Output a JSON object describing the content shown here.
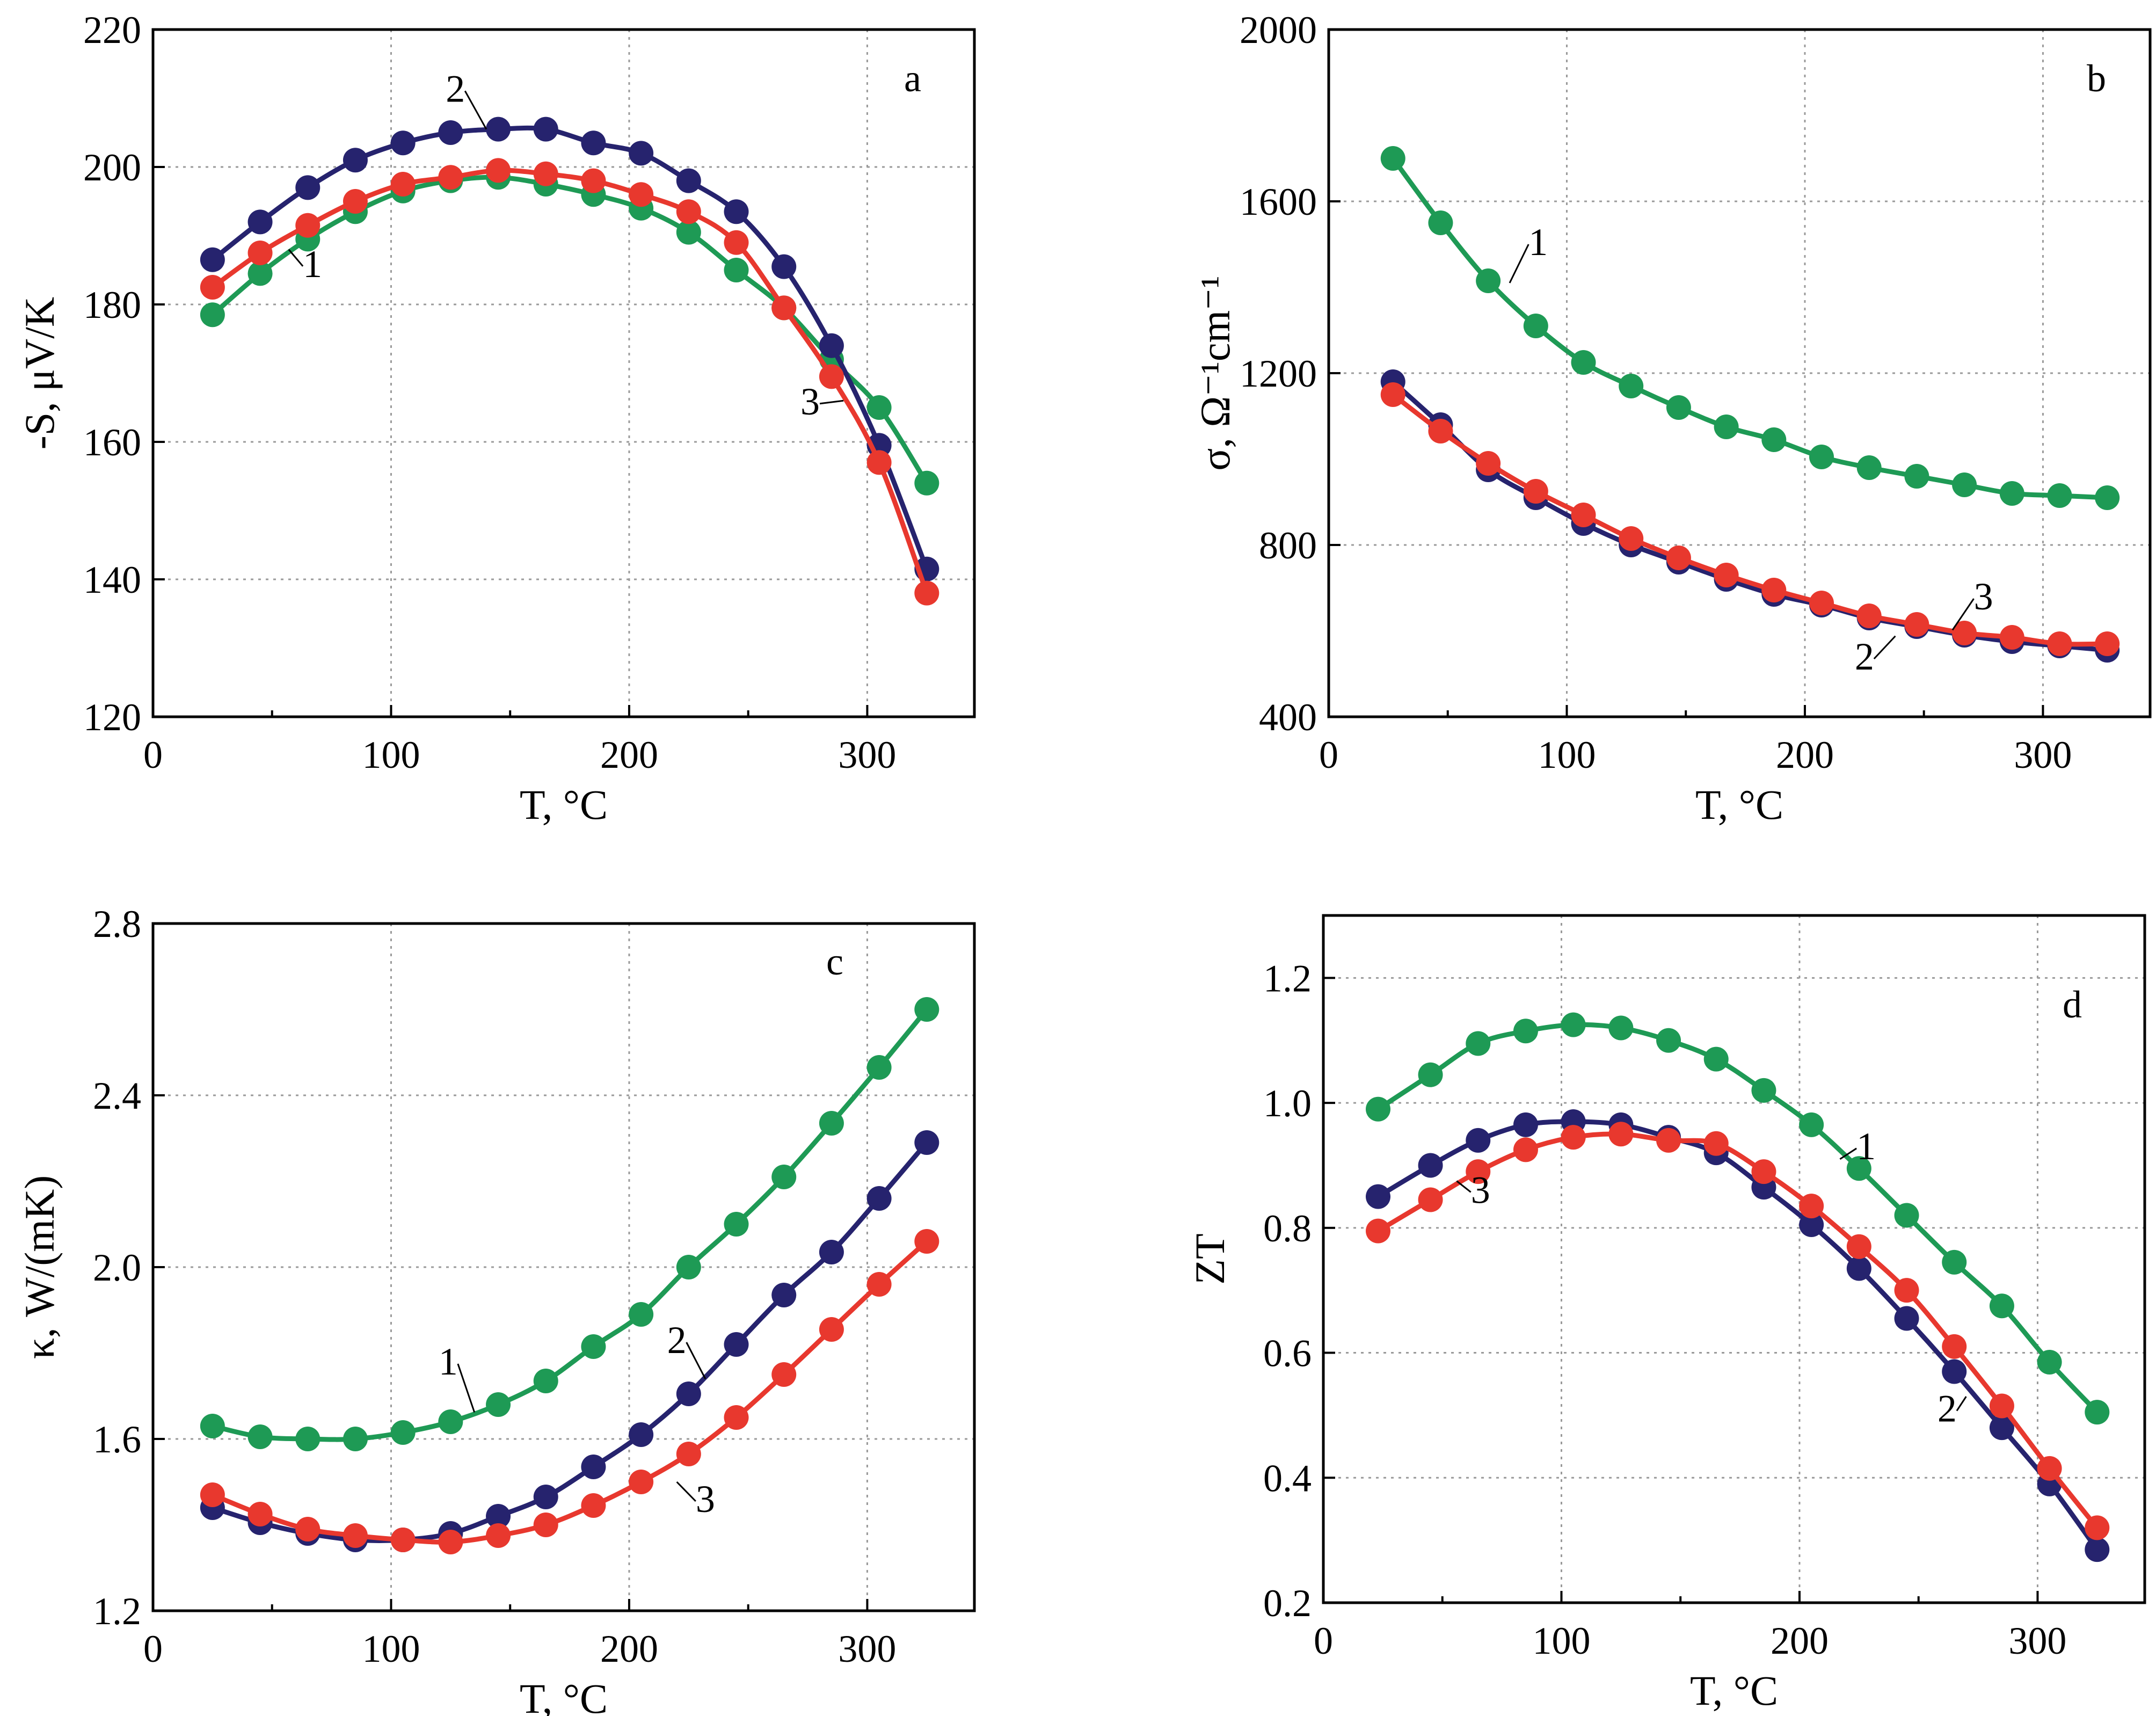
{
  "colors": {
    "green": "#1e9a55",
    "navy": "#26236e",
    "red": "#e8382e"
  },
  "chart_data": [
    {
      "type": "line",
      "panel": "a",
      "xlabel": "T, °C",
      "ylabel": "-S, μV/K",
      "xlim": [
        0,
        345
      ],
      "ylim": [
        120,
        220
      ],
      "xticks": [
        0,
        100,
        200,
        300
      ],
      "yticks": [
        120,
        140,
        160,
        180,
        200,
        220
      ],
      "x": [
        25,
        45,
        65,
        85,
        105,
        125,
        145,
        165,
        185,
        205,
        225,
        245,
        265,
        285,
        305,
        325
      ],
      "series": [
        {
          "name": "1",
          "color": "#1e9a55",
          "values": [
            178.5,
            184.5,
            189.5,
            193.5,
            196.5,
            198,
            198.5,
            197.5,
            196,
            194,
            190.5,
            185,
            179.5,
            172,
            165,
            154
          ]
        },
        {
          "name": "2",
          "color": "#26236e",
          "values": [
            186.5,
            192,
            197,
            201,
            203.5,
            205,
            205.5,
            205.5,
            203.5,
            202,
            198,
            193.5,
            185.5,
            174,
            159.5,
            141.5
          ]
        },
        {
          "name": "3",
          "color": "#e8382e",
          "values": [
            182.5,
            187.5,
            191.5,
            195,
            197.5,
            198.5,
            199.5,
            199,
            198,
            196,
            193.5,
            189,
            179.5,
            169.5,
            157,
            138
          ]
        }
      ],
      "curve_labels": [
        {
          "text": "1",
          "x": 67,
          "y": 184,
          "ax": 57,
          "ay": 188
        },
        {
          "text": "2",
          "x": 127,
          "y": 209.5,
          "ax": 140,
          "ay": 205.5
        },
        {
          "text": "3",
          "x": 276,
          "y": 164,
          "ax": 290,
          "ay": 166
        }
      ]
    },
    {
      "type": "line",
      "panel": "b",
      "xlabel": "T, °C",
      "ylabel": "σ, Ω⁻¹cm⁻¹",
      "xlim": [
        0,
        345
      ],
      "ylim": [
        400,
        2000
      ],
      "xticks": [
        0,
        100,
        200,
        300
      ],
      "yticks": [
        400,
        800,
        1200,
        1600,
        2000
      ],
      "x": [
        27,
        47,
        67,
        87,
        107,
        127,
        147,
        167,
        187,
        207,
        227,
        247,
        267,
        287,
        307,
        327
      ],
      "series": [
        {
          "name": "1",
          "color": "#1e9a55",
          "values": [
            1700,
            1550,
            1415,
            1310,
            1225,
            1170,
            1120,
            1075,
            1045,
            1005,
            980,
            960,
            940,
            920,
            915,
            910
          ]
        },
        {
          "name": "2",
          "color": "#26236e",
          "values": [
            1180,
            1080,
            975,
            910,
            850,
            800,
            760,
            720,
            685,
            660,
            630,
            610,
            590,
            575,
            565,
            555
          ]
        },
        {
          "name": "3",
          "color": "#e8382e",
          "values": [
            1150,
            1065,
            990,
            925,
            870,
            815,
            770,
            730,
            695,
            665,
            635,
            615,
            595,
            585,
            570,
            570
          ]
        }
      ],
      "curve_labels": [
        {
          "text": "1",
          "x": 88,
          "y": 1475,
          "ax": 76,
          "ay": 1410
        },
        {
          "text": "2",
          "x": 225,
          "y": 510,
          "ax": 238,
          "ay": 588
        },
        {
          "text": "3",
          "x": 275,
          "y": 650,
          "ax": 262,
          "ay": 602
        }
      ]
    },
    {
      "type": "line",
      "panel": "c",
      "xlabel": "T, °C",
      "ylabel": "κ, W/(mK)",
      "xlim": [
        0,
        345
      ],
      "ylim": [
        1.2,
        2.8
      ],
      "xticks": [
        0,
        100,
        200,
        300
      ],
      "yticks": [
        1.2,
        1.6,
        2.0,
        2.4,
        2.8
      ],
      "x": [
        25,
        45,
        65,
        85,
        105,
        125,
        145,
        165,
        185,
        205,
        225,
        245,
        265,
        285,
        305,
        325
      ],
      "series": [
        {
          "name": "1",
          "color": "#1e9a55",
          "values": [
            1.63,
            1.605,
            1.6,
            1.6,
            1.615,
            1.64,
            1.68,
            1.735,
            1.815,
            1.89,
            2.0,
            2.1,
            2.21,
            2.335,
            2.465,
            2.6
          ]
        },
        {
          "name": "2",
          "color": "#26236e",
          "values": [
            1.44,
            1.405,
            1.38,
            1.365,
            1.365,
            1.38,
            1.42,
            1.465,
            1.535,
            1.61,
            1.705,
            1.82,
            1.935,
            2.035,
            2.16,
            2.29
          ]
        },
        {
          "name": "3",
          "color": "#e8382e",
          "values": [
            1.47,
            1.425,
            1.39,
            1.375,
            1.365,
            1.36,
            1.375,
            1.4,
            1.445,
            1.5,
            1.565,
            1.65,
            1.75,
            1.855,
            1.96,
            2.06
          ]
        }
      ],
      "curve_labels": [
        {
          "text": "1",
          "x": 124,
          "y": 1.75,
          "ax": 135,
          "ay": 1.662
        },
        {
          "text": "2",
          "x": 220,
          "y": 1.8,
          "ax": 232,
          "ay": 1.74
        },
        {
          "text": "3",
          "x": 232,
          "y": 1.43,
          "ax": 220,
          "ay": 1.5
        }
      ]
    },
    {
      "type": "line",
      "panel": "d",
      "xlabel": "T, °C",
      "ylabel": "ZT",
      "xlim": [
        0,
        345
      ],
      "ylim": [
        0.2,
        1.3
      ],
      "xticks": [
        0,
        100,
        200,
        300
      ],
      "yticks": [
        0.2,
        0.4,
        0.6,
        0.8,
        1.0,
        1.2
      ],
      "x": [
        23,
        45,
        65,
        85,
        105,
        125,
        145,
        165,
        185,
        205,
        225,
        245,
        265,
        285,
        305,
        325
      ],
      "series": [
        {
          "name": "1",
          "color": "#1e9a55",
          "values": [
            0.99,
            1.045,
            1.095,
            1.115,
            1.125,
            1.12,
            1.1,
            1.07,
            1.02,
            0.965,
            0.895,
            0.82,
            0.745,
            0.675,
            0.585,
            0.505
          ]
        },
        {
          "name": "2",
          "color": "#26236e",
          "values": [
            0.85,
            0.9,
            0.94,
            0.965,
            0.97,
            0.965,
            0.945,
            0.92,
            0.865,
            0.805,
            0.735,
            0.655,
            0.57,
            0.48,
            0.39,
            0.285
          ]
        },
        {
          "name": "3",
          "color": "#e8382e",
          "values": [
            0.795,
            0.845,
            0.89,
            0.925,
            0.945,
            0.95,
            0.94,
            0.935,
            0.89,
            0.835,
            0.77,
            0.7,
            0.61,
            0.515,
            0.415,
            0.32
          ]
        }
      ],
      "curve_labels": [
        {
          "text": "1",
          "x": 228,
          "y": 0.91,
          "ax": 217,
          "ay": 0.91
        },
        {
          "text": "2",
          "x": 262,
          "y": 0.49,
          "ax": 270,
          "ay": 0.53
        },
        {
          "text": "3",
          "x": 66,
          "y": 0.84,
          "ax": 56,
          "ay": 0.875
        }
      ]
    }
  ]
}
